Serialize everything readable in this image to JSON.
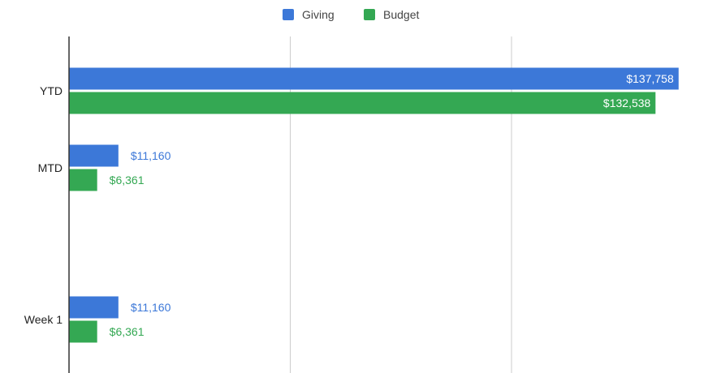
{
  "chart_data": {
    "type": "bar",
    "orientation": "horizontal",
    "categories": [
      "YTD",
      "MTD",
      "Week 1"
    ],
    "series": [
      {
        "name": "Giving",
        "values": [
          137758,
          11160,
          11160
        ],
        "labels": [
          "$137,758",
          "$11,160",
          "$11,160"
        ],
        "color": "#3c78d8"
      },
      {
        "name": "Budget",
        "values": [
          132538,
          6361,
          6361
        ],
        "labels": [
          "$132,538",
          "$6,361",
          "$6,361"
        ],
        "color": "#34a853"
      }
    ],
    "xlim": [
      0,
      150000
    ],
    "grid": true,
    "legend_position": "top-center",
    "title": "",
    "xlabel": "",
    "ylabel": ""
  }
}
